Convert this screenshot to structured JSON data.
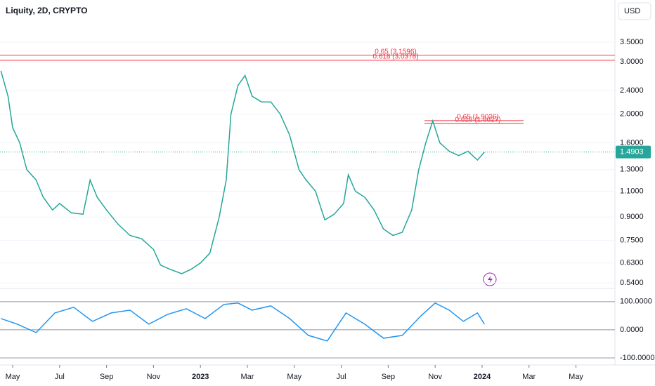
{
  "chart_data": [
    {
      "type": "line",
      "title": "Liquity, 2D, CRYPTO",
      "currency": "USD",
      "log_scale": true,
      "color": "#26a69a",
      "x": [
        3.5,
        3.8,
        4.0,
        4.3,
        4.6,
        5.0,
        5.3,
        5.7,
        6.0,
        6.5,
        7.0,
        7.3,
        7.6,
        8.0,
        8.5,
        9.0,
        9.5,
        10.0,
        10.3,
        10.7,
        11.2,
        11.6,
        12.0,
        12.4,
        12.8,
        13.1,
        13.3,
        13.6,
        13.9,
        14.2,
        14.6,
        15.0,
        15.4,
        15.8,
        16.2,
        16.5,
        16.9,
        17.3,
        17.7,
        18.1,
        18.3,
        18.6,
        19.0,
        19.4,
        19.8,
        20.2,
        20.6,
        21.0,
        21.3,
        21.6,
        21.9,
        22.2,
        22.6,
        23.0,
        23.4,
        23.8,
        24.1
      ],
      "values": [
        2.8,
        2.3,
        1.8,
        1.6,
        1.3,
        1.2,
        1.05,
        0.95,
        1.0,
        0.93,
        0.92,
        1.2,
        1.05,
        0.95,
        0.85,
        0.78,
        0.76,
        0.7,
        0.62,
        0.6,
        0.58,
        0.6,
        0.63,
        0.68,
        0.9,
        1.2,
        2.0,
        2.5,
        2.7,
        2.3,
        2.2,
        2.2,
        2.0,
        1.7,
        1.3,
        1.2,
        1.1,
        0.88,
        0.92,
        1.0,
        1.25,
        1.1,
        1.05,
        0.95,
        0.82,
        0.78,
        0.8,
        0.95,
        1.3,
        1.6,
        1.9,
        1.6,
        1.5,
        1.45,
        1.5,
        1.4,
        1.4903
      ],
      "xlim": [
        3.46,
        29.66
      ],
      "xticks": [
        {
          "value": 4,
          "label": "May"
        },
        {
          "value": 6,
          "label": "Jul"
        },
        {
          "value": 8,
          "label": "Sep"
        },
        {
          "value": 10,
          "label": "Nov"
        },
        {
          "value": 12,
          "label": "2023"
        },
        {
          "value": 14,
          "label": "Mar"
        },
        {
          "value": 16,
          "label": "May"
        },
        {
          "value": 18,
          "label": "Jul"
        },
        {
          "value": 20,
          "label": "Sep"
        },
        {
          "value": 22,
          "label": "Nov"
        },
        {
          "value": 24,
          "label": "2024"
        },
        {
          "value": 26,
          "label": "Mar"
        },
        {
          "value": 28,
          "label": "May"
        }
      ],
      "ylim": [
        0.52,
        4.85
      ],
      "yticks": [
        {
          "value": 3.5,
          "label": "3.5000"
        },
        {
          "value": 3.0,
          "label": "3.0000"
        },
        {
          "value": 2.4,
          "label": "2.4000"
        },
        {
          "value": 2.0,
          "label": "2.0000"
        },
        {
          "value": 1.6,
          "label": "1.6000"
        },
        {
          "value": 1.3,
          "label": "1.3000"
        },
        {
          "value": 1.1,
          "label": "1.1000"
        },
        {
          "value": 0.9,
          "label": "0.9000"
        },
        {
          "value": 0.75,
          "label": "0.7500"
        },
        {
          "value": 0.63,
          "label": "0.6300"
        },
        {
          "value": 0.54,
          "label": "0.5400"
        }
      ],
      "last_price": 1.4903,
      "levels": [
        {
          "label": "0.65 (3.1596)",
          "value": 3.1596
        },
        {
          "label": "0.618 (3.0378)",
          "value": 3.0378
        },
        {
          "label": "0.65 (1.9026)",
          "value": 1.9026
        },
        {
          "label": "0.618 (1.8627)",
          "value": 1.8627
        }
      ]
    },
    {
      "type": "line",
      "color": "#2196f3",
      "x": [
        3.5,
        4.2,
        5.0,
        5.8,
        6.6,
        7.4,
        8.2,
        9.0,
        9.8,
        10.6,
        11.4,
        12.2,
        13.0,
        13.6,
        14.2,
        15.0,
        15.8,
        16.6,
        17.4,
        18.2,
        19.0,
        19.8,
        20.6,
        21.4,
        22.0,
        22.6,
        23.2,
        23.8,
        24.1
      ],
      "values": [
        40,
        20,
        -10,
        60,
        80,
        30,
        60,
        70,
        20,
        55,
        75,
        40,
        90,
        95,
        70,
        85,
        40,
        -20,
        -40,
        60,
        20,
        -30,
        -20,
        50,
        95,
        70,
        30,
        60,
        20
      ],
      "ylim": [
        -125,
        142
      ],
      "yticks": [
        {
          "value": 100,
          "label": "100.0000"
        },
        {
          "value": 0,
          "label": "0.0000"
        },
        {
          "value": -100,
          "label": "-100.0000"
        }
      ]
    }
  ]
}
